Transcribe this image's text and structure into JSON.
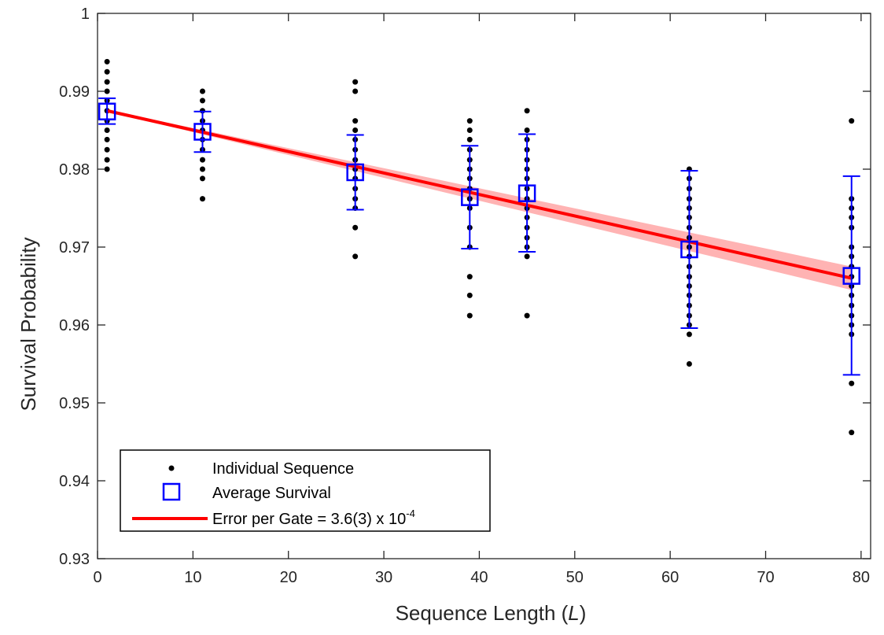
{
  "chart_data": {
    "type": "scatter",
    "title": "",
    "xlabel": "Sequence Length (",
    "xlabel_var": "L",
    "xlabel_close": ")",
    "ylabel": "Survival Probability",
    "xlim": [
      0,
      81
    ],
    "ylim": [
      0.93,
      1
    ],
    "xticks": [
      0,
      10,
      20,
      30,
      40,
      50,
      60,
      70,
      80
    ],
    "xtick_labels": [
      "0",
      "10",
      "20",
      "30",
      "40",
      "50",
      "60",
      "70",
      "80"
    ],
    "yticks": [
      0.93,
      0.94,
      0.95,
      0.96,
      0.97,
      0.98,
      0.99,
      1
    ],
    "ytick_labels": [
      "0.93",
      "0.94",
      "0.95",
      "0.96",
      "0.97",
      "0.98",
      "0.99",
      "1"
    ],
    "grid": false,
    "legend_position": "bottom-left",
    "series": [
      {
        "name": "Individual Sequence",
        "kind": "points",
        "color": "#000000",
        "points": [
          {
            "x": 1,
            "values": [
              0.9938,
              0.9925,
              0.9912,
              0.99,
              0.9888,
              0.9875,
              0.9862,
              0.985,
              0.9838,
              0.9825,
              0.9812,
              0.98
            ]
          },
          {
            "x": 11,
            "values": [
              0.99,
              0.9888,
              0.9875,
              0.9862,
              0.985,
              0.9838,
              0.9825,
              0.9812,
              0.98,
              0.9788,
              0.9762
            ]
          },
          {
            "x": 27,
            "values": [
              0.9912,
              0.99,
              0.9862,
              0.985,
              0.9838,
              0.9825,
              0.9812,
              0.98,
              0.9788,
              0.9775,
              0.9762,
              0.975,
              0.9725,
              0.9688
            ]
          },
          {
            "x": 39,
            "values": [
              0.9862,
              0.985,
              0.9838,
              0.9825,
              0.9812,
              0.98,
              0.9788,
              0.9775,
              0.9762,
              0.975,
              0.9725,
              0.97,
              0.9662,
              0.9638,
              0.9612
            ]
          },
          {
            "x": 45,
            "values": [
              0.9875,
              0.985,
              0.9838,
              0.9825,
              0.9812,
              0.98,
              0.9788,
              0.9775,
              0.9762,
              0.975,
              0.9738,
              0.9725,
              0.9712,
              0.97,
              0.9688,
              0.9612
            ]
          },
          {
            "x": 62,
            "values": [
              0.98,
              0.9788,
              0.9775,
              0.9762,
              0.975,
              0.9738,
              0.9725,
              0.9712,
              0.97,
              0.9688,
              0.9675,
              0.9662,
              0.965,
              0.9638,
              0.9625,
              0.9612,
              0.96,
              0.9588,
              0.955
            ]
          },
          {
            "x": 79,
            "values": [
              0.9862,
              0.9762,
              0.975,
              0.9738,
              0.9725,
              0.97,
              0.9688,
              0.9675,
              0.9662,
              0.965,
              0.9638,
              0.9625,
              0.9612,
              0.96,
              0.9588,
              0.9525,
              0.9462
            ]
          }
        ]
      },
      {
        "name": "Average Survival",
        "kind": "squares",
        "color": "#0000ff",
        "x": [
          1,
          11,
          27,
          39,
          45,
          62,
          79
        ],
        "y": [
          0.9874,
          0.9848,
          0.9796,
          0.9764,
          0.9769,
          0.9697,
          0.9663
        ],
        "err_low": [
          0.9858,
          0.9822,
          0.9748,
          0.9698,
          0.9694,
          0.9596,
          0.9536
        ],
        "err_high": [
          0.9891,
          0.9874,
          0.9844,
          0.983,
          0.9845,
          0.9798,
          0.9791
        ]
      },
      {
        "name_prefix": "Error per Gate = 3.6(3) x 10",
        "name_exp": "-4",
        "kind": "fit",
        "color": "#ff0000",
        "band_color": "#ffb3b3",
        "x": [
          1,
          79
        ],
        "y": [
          0.9875,
          0.966
        ],
        "band_low": [
          0.9874,
          0.9645
        ],
        "band_high": [
          0.9876,
          0.9675
        ]
      }
    ]
  }
}
